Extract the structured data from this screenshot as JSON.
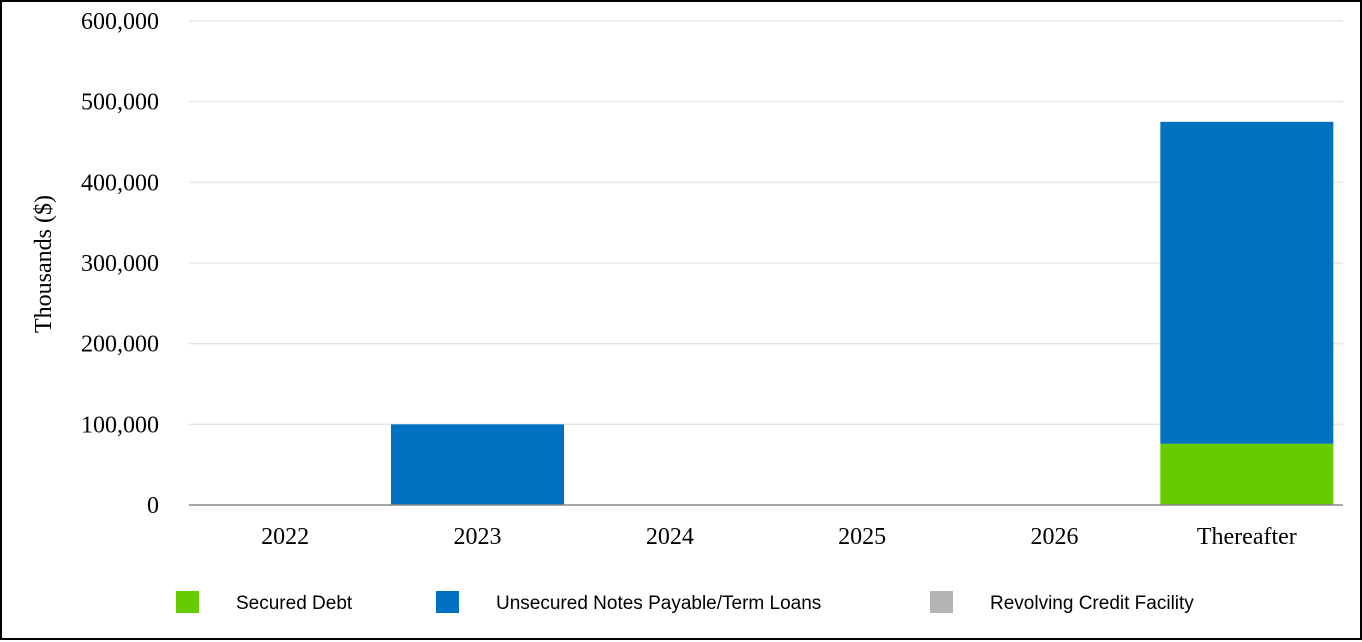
{
  "chart_data": {
    "type": "bar",
    "stacked": true,
    "categories": [
      "2022",
      "2023",
      "2024",
      "2025",
      "2026",
      "Thereafter"
    ],
    "series": [
      {
        "name": "Secured Debt",
        "color": "#66cc00",
        "values": [
          0,
          0,
          0,
          0,
          0,
          76000
        ]
      },
      {
        "name": "Unsecured Notes Payable/Term Loans",
        "color": "#0070c0",
        "values": [
          0,
          100000,
          0,
          0,
          0,
          399000
        ]
      },
      {
        "name": "Revolving Credit Facility",
        "color": "#b3b3b3",
        "values": [
          0,
          0,
          0,
          0,
          0,
          0
        ]
      }
    ],
    "ylabel": "Thousands ($)",
    "ylim": [
      0,
      600000
    ],
    "yticks": [
      "0",
      "100,000",
      "200,000",
      "300,000",
      "400,000",
      "500,000",
      "600,000"
    ],
    "grid": true,
    "legend_position": "bottom"
  }
}
